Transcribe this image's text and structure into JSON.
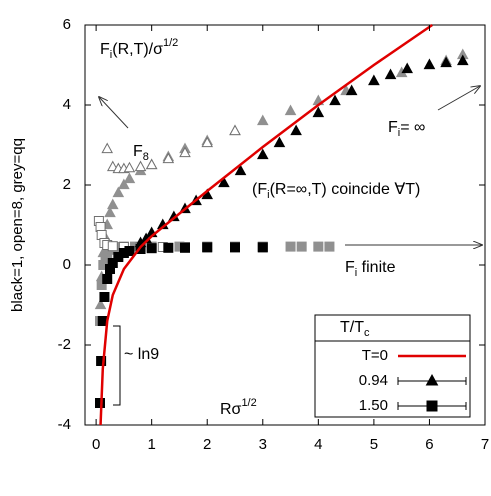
{
  "chart_data": {
    "type": "scatter",
    "y_label": "black=1, open=8, grey=qq",
    "xlim": [
      -0.2,
      7
    ],
    "xticks": [
      0,
      1,
      2,
      3,
      4,
      5,
      6,
      7
    ],
    "ylim": [
      -4,
      6
    ],
    "yticks": [
      -4,
      -2,
      0,
      2,
      4,
      6
    ],
    "legend_title": [
      {
        "text": "T/T"
      },
      {
        "text": "c",
        "shift": "sub"
      }
    ],
    "legend_position": "lower right",
    "annotations": [
      [
        {
          "text": "F"
        },
        {
          "text": "i",
          "shift": "sub"
        },
        {
          "text": "(R,T)/σ"
        },
        {
          "text": "1/2",
          "shift": "sup"
        }
      ],
      [
        {
          "text": "F"
        },
        {
          "text": "8",
          "shift": "sub"
        }
      ],
      [
        {
          "text": "F"
        },
        {
          "text": "i",
          "shift": "sub"
        },
        {
          "text": "= ∞"
        }
      ],
      [
        {
          "text": "(F"
        },
        {
          "text": "i",
          "shift": "sub"
        },
        {
          "text": "(R=∞,T) coincide ∀T)"
        }
      ],
      [
        {
          "text": "F"
        },
        {
          "text": "i",
          "shift": "sub"
        },
        {
          "text": " finite"
        }
      ],
      [
        {
          "text": "~ ln9"
        }
      ],
      [
        {
          "text": "Rσ"
        },
        {
          "text": "1/2",
          "shift": "sup"
        }
      ]
    ],
    "series": [
      {
        "name": "T=0",
        "color": "#e00000",
        "marker": "line",
        "x": [
          0.08,
          0.12,
          0.2,
          0.3,
          0.5,
          0.8,
          1,
          2,
          3,
          4,
          5,
          6.05
        ],
        "values": [
          -4.0,
          -2.6,
          -1.4,
          -0.75,
          -0.1,
          0.45,
          0.72,
          1.85,
          2.95,
          4.0,
          5.0,
          6.0
        ]
      },
      {
        "name": "0.94",
        "color": "#000000",
        "marker": "triangle",
        "open": false,
        "x": [
          0.8,
          0.9,
          1.0,
          1.2,
          1.4,
          1.6,
          1.8,
          2.0,
          2.3,
          2.6,
          3.0,
          3.3,
          3.6,
          4.0,
          4.3,
          4.6,
          5.0,
          5.3,
          5.6,
          6.0,
          6.3,
          6.6
        ],
        "values": [
          0.55,
          0.65,
          0.8,
          1.0,
          1.2,
          1.4,
          1.6,
          1.75,
          2.05,
          2.35,
          2.75,
          3.05,
          3.35,
          3.8,
          4.1,
          4.35,
          4.6,
          4.75,
          4.9,
          5.0,
          5.05,
          5.1
        ]
      },
      {
        "name": "1.50",
        "color": "#000000",
        "marker": "square",
        "open": false,
        "x": [
          0.07,
          0.09,
          0.12,
          0.15,
          0.2,
          0.25,
          0.3,
          0.4,
          0.5,
          0.6,
          0.8,
          1.0,
          1.3,
          1.6,
          2.0,
          2.5,
          3.0
        ],
        "values": [
          -3.45,
          -2.4,
          -1.4,
          -0.8,
          -0.35,
          -0.1,
          0.05,
          0.2,
          0.3,
          0.35,
          0.4,
          0.42,
          0.43,
          0.43,
          0.44,
          0.44,
          0.44
        ]
      },
      {
        "color": "#909090",
        "marker": "triangle",
        "open": false,
        "x": [
          0.08,
          0.1,
          0.13,
          0.16,
          0.2,
          0.25,
          0.3,
          0.4,
          0.5,
          0.6,
          0.8,
          1.0,
          1.3,
          1.6,
          2.0,
          2.5,
          3.0,
          3.5,
          4.0,
          4.5,
          5.0,
          5.5,
          6.0,
          6.3,
          6.6
        ],
        "values": [
          -1.0,
          -0.3,
          0.3,
          0.7,
          1.0,
          1.3,
          1.5,
          1.8,
          2.0,
          2.15,
          2.35,
          2.5,
          2.7,
          2.9,
          3.1,
          3.35,
          3.6,
          3.85,
          4.1,
          4.35,
          4.6,
          4.8,
          5.0,
          5.1,
          5.25
        ]
      },
      {
        "color": "#909090",
        "marker": "square",
        "open": false,
        "x": [
          0.07,
          0.1,
          0.13,
          0.17,
          0.2,
          0.25,
          0.3,
          0.4,
          0.5,
          0.7,
          1.0,
          1.5,
          2.0,
          2.5,
          3.0,
          3.5,
          3.7,
          4.0,
          4.2
        ],
        "values": [
          -1.4,
          -0.5,
          0.0,
          0.2,
          0.3,
          0.38,
          0.42,
          0.45,
          0.46,
          0.46,
          0.46,
          0.46,
          0.46,
          0.46,
          0.46,
          0.46,
          0.46,
          0.46,
          0.46
        ]
      },
      {
        "color": "#707070",
        "marker": "triangle",
        "open": true,
        "x": [
          0.2,
          0.3,
          0.4,
          0.5,
          0.6,
          0.8,
          1.0,
          1.3,
          1.6,
          2.0,
          2.5
        ],
        "values": [
          2.9,
          2.45,
          2.4,
          2.4,
          2.42,
          2.45,
          2.5,
          2.65,
          2.8,
          3.05,
          3.35
        ]
      },
      {
        "color": "#707070",
        "marker": "square",
        "open": true,
        "x": [
          0.05,
          0.08,
          0.1,
          0.15,
          0.2,
          0.3,
          0.5,
          0.8,
          1.2,
          1.6,
          2.0,
          2.5,
          3.0
        ],
        "values": [
          1.1,
          0.95,
          0.75,
          0.55,
          0.5,
          0.47,
          0.45,
          0.45,
          0.45,
          0.45,
          0.45,
          0.45,
          0.45
        ]
      }
    ]
  }
}
